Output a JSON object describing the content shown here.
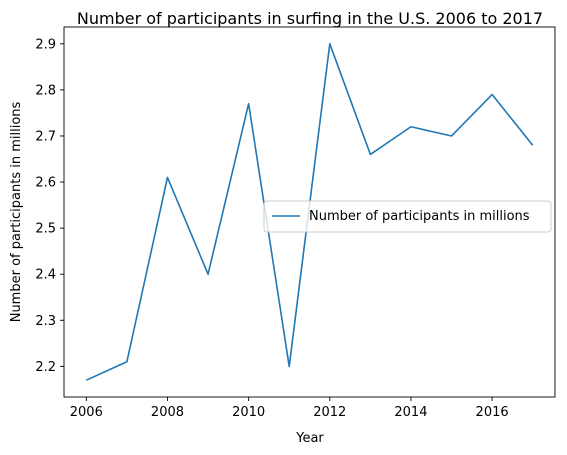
{
  "chart_data": {
    "type": "line",
    "title": "Number of participants in surfing in the U.S. 2006 to 2017",
    "xlabel": "Year",
    "ylabel": "Number of participants in millions",
    "x": [
      2006,
      2007,
      2008,
      2009,
      2010,
      2011,
      2012,
      2013,
      2014,
      2015,
      2016,
      2017
    ],
    "series": [
      {
        "name": "Number of participants in millions",
        "values": [
          2.17,
          2.21,
          2.61,
          2.4,
          2.77,
          2.2,
          2.9,
          2.66,
          2.72,
          2.7,
          2.79,
          2.68
        ],
        "color": "#1f77b4"
      }
    ],
    "xlim": [
      2005.45,
      2017.55
    ],
    "ylim": [
      2.1335,
      2.9365
    ],
    "xticks": [
      2006,
      2008,
      2010,
      2012,
      2014,
      2016
    ],
    "yticks": [
      2.2,
      2.3,
      2.4,
      2.5,
      2.6,
      2.7,
      2.8,
      2.9
    ],
    "ytick_labels": [
      "2.2",
      "2.3",
      "2.4",
      "2.5",
      "2.6",
      "2.7",
      "2.8",
      "2.9"
    ],
    "grid": false,
    "legend_position": "center-right"
  }
}
